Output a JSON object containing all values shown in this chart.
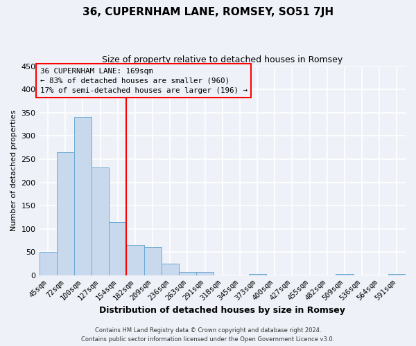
{
  "title": "36, CUPERNHAM LANE, ROMSEY, SO51 7JH",
  "subtitle": "Size of property relative to detached houses in Romsey",
  "xlabel": "Distribution of detached houses by size in Romsey",
  "ylabel": "Number of detached properties",
  "bar_labels": [
    "45sqm",
    "72sqm",
    "100sqm",
    "127sqm",
    "154sqm",
    "182sqm",
    "209sqm",
    "236sqm",
    "263sqm",
    "291sqm",
    "318sqm",
    "345sqm",
    "373sqm",
    "400sqm",
    "427sqm",
    "455sqm",
    "482sqm",
    "509sqm",
    "536sqm",
    "564sqm",
    "591sqm"
  ],
  "bar_values": [
    50,
    265,
    340,
    232,
    115,
    66,
    61,
    25,
    7,
    7,
    0,
    0,
    3,
    0,
    0,
    0,
    0,
    3,
    0,
    0,
    3
  ],
  "bar_color": "#c8d9ee",
  "bar_edgecolor": "#6aaad4",
  "marker_label_line1": "36 CUPERNHAM LANE: 169sqm",
  "marker_label_line2": "← 83% of detached houses are smaller (960)",
  "marker_label_line3": "17% of semi-detached houses are larger (196) →",
  "marker_color": "red",
  "ylim": [
    0,
    450
  ],
  "yticks": [
    0,
    50,
    100,
    150,
    200,
    250,
    300,
    350,
    400,
    450
  ],
  "background_color": "#eef2f8",
  "grid_color": "#ffffff",
  "footer_line1": "Contains HM Land Registry data © Crown copyright and database right 2024.",
  "footer_line2": "Contains public sector information licensed under the Open Government Licence v3.0."
}
